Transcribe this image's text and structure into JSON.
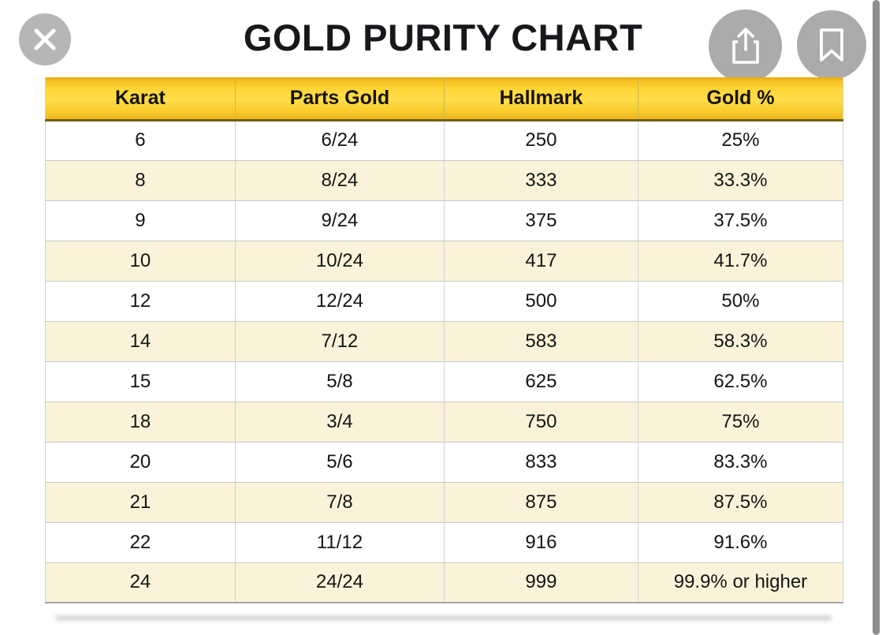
{
  "viewer": {
    "toolbar": {
      "close": {
        "icon": "close-icon",
        "glyph": "x-cross"
      },
      "share": {
        "icon": "share-icon",
        "glyph": "arrow-up-from-square"
      },
      "bookmark": {
        "icon": "bookmark-icon",
        "glyph": "bookmark-ribbon-outline"
      }
    },
    "scrollbar": {
      "orientation": "vertical",
      "color": "#8d8d8d"
    }
  },
  "chart_data": {
    "type": "table",
    "title": "GOLD PURITY CHART",
    "columns": [
      "Karat",
      "Parts Gold",
      "Hallmark",
      "Gold %"
    ],
    "rows": [
      [
        "6",
        "6/24",
        "250",
        "25%"
      ],
      [
        "8",
        "8/24",
        "333",
        "33.3%"
      ],
      [
        "9",
        "9/24",
        "375",
        "37.5%"
      ],
      [
        "10",
        "10/24",
        "417",
        "41.7%"
      ],
      [
        "12",
        "12/24",
        "500",
        "50%"
      ],
      [
        "14",
        "7/12",
        "583",
        "58.3%"
      ],
      [
        "15",
        "5/8",
        "625",
        "62.5%"
      ],
      [
        "18",
        "3/4",
        "750",
        "75%"
      ],
      [
        "20",
        "5/6",
        "833",
        "83.3%"
      ],
      [
        "21",
        "7/8",
        "875",
        "87.5%"
      ],
      [
        "22",
        "11/12",
        "916",
        "91.6%"
      ],
      [
        "24",
        "24/24",
        "999",
        "99.9% or higher"
      ]
    ],
    "layout": {
      "striping": "alternate white / cream starting white",
      "header_background": "#ffd83b",
      "stripe_color": "#faf3da",
      "title_color": "#18181c"
    }
  }
}
